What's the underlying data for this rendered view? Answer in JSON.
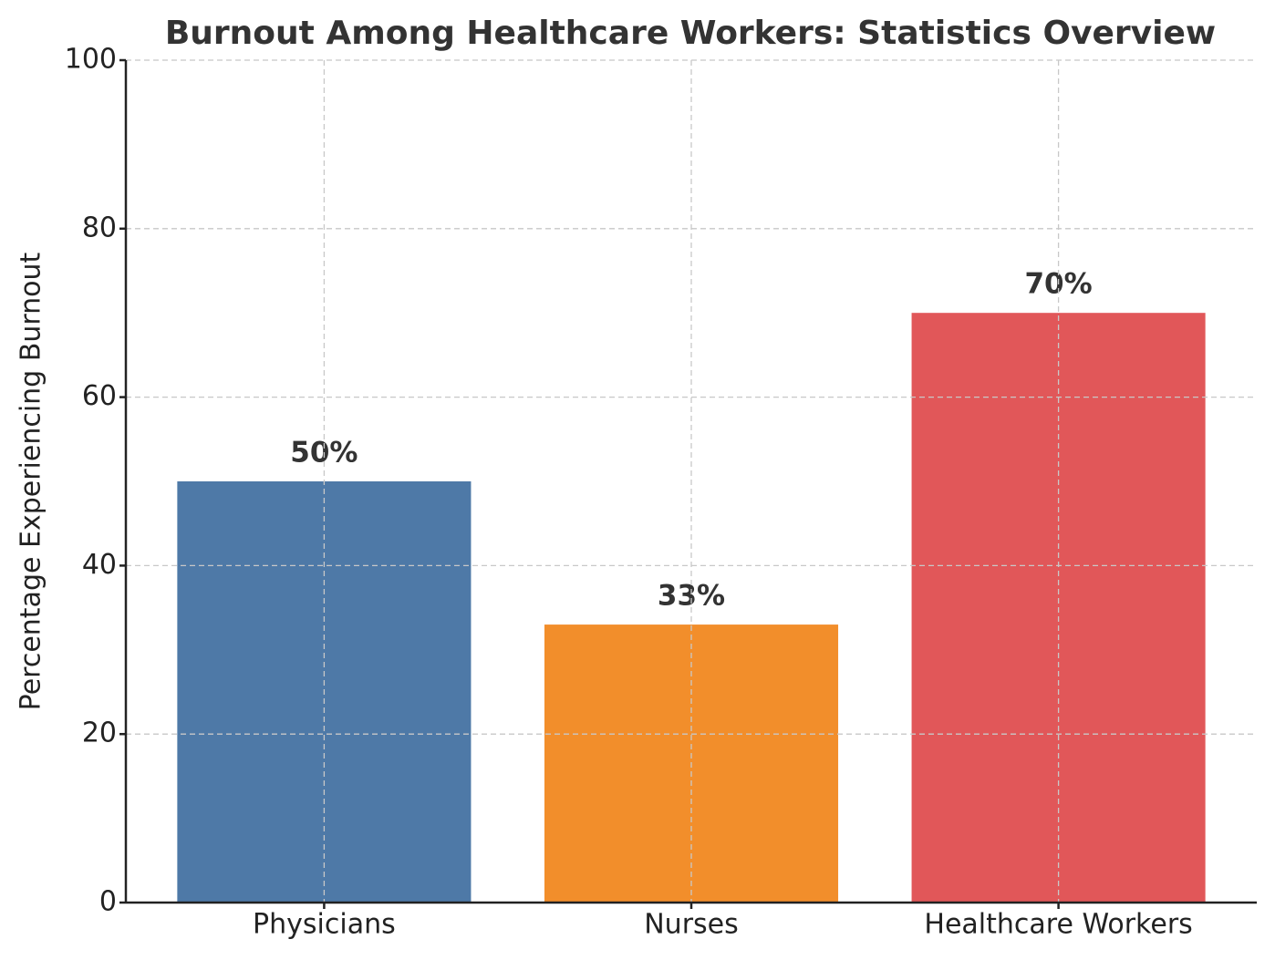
{
  "chart_data": {
    "type": "bar",
    "title": "Burnout Among Healthcare Workers: Statistics Overview",
    "ylabel": "Percentage Experiencing Burnout",
    "categories": [
      "Physicians",
      "Nurses",
      "Healthcare Workers"
    ],
    "values": [
      50,
      33,
      70
    ],
    "value_labels": [
      "50%",
      "33%",
      "70%"
    ],
    "colors": [
      "#4e79a7",
      "#f28e2b",
      "#e15759"
    ],
    "ylim": [
      0,
      100
    ],
    "yticks": [
      0,
      20,
      40,
      60,
      80,
      100
    ],
    "grid": true
  }
}
